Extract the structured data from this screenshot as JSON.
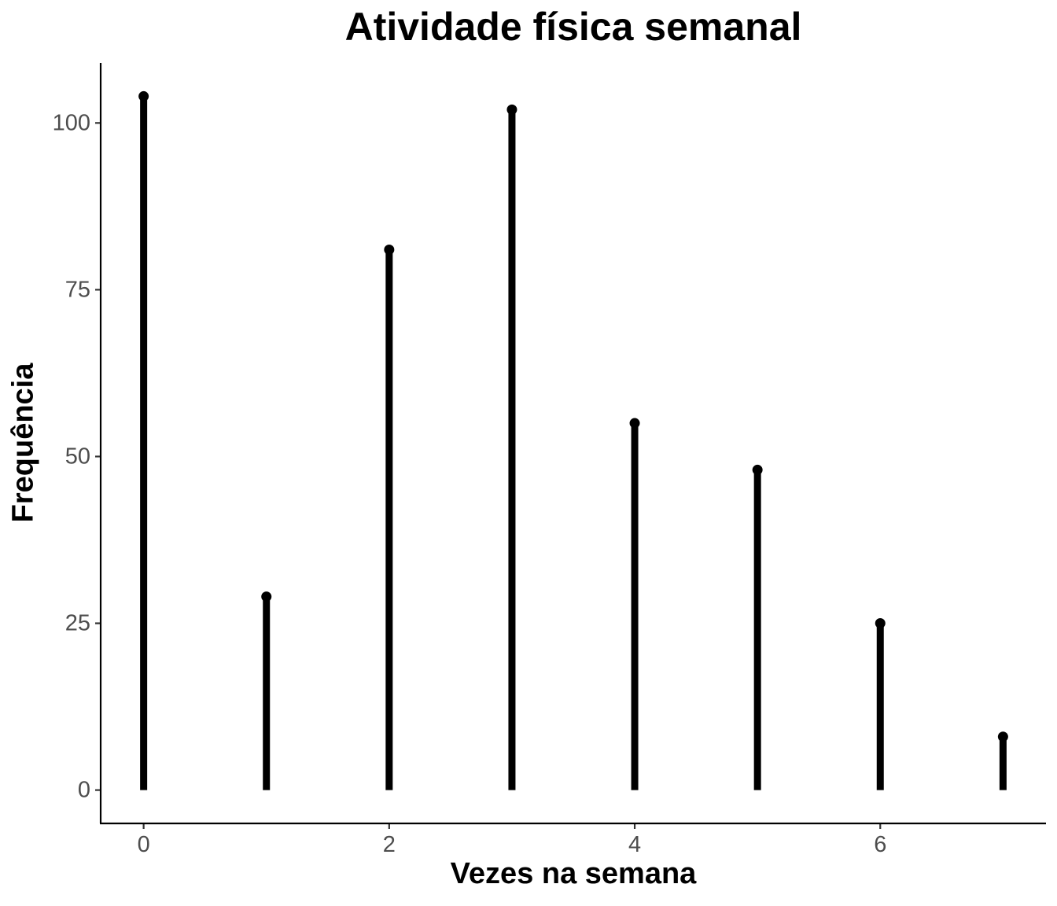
{
  "chart_data": {
    "type": "lollipop",
    "title": "Atividade física semanal",
    "xlabel": "Vezes na semana",
    "ylabel": "Frequência",
    "x": [
      0,
      1,
      2,
      3,
      4,
      5,
      6,
      7
    ],
    "values": [
      104,
      29,
      81,
      102,
      55,
      48,
      25,
      8
    ],
    "xlim": [
      -0.35,
      7.35
    ],
    "ylim": [
      -5,
      109
    ],
    "x_ticks": [
      0,
      2,
      4,
      6
    ],
    "y_ticks": [
      0,
      25,
      50,
      75,
      100
    ],
    "grid": false,
    "legend": "none",
    "color": "#000000"
  }
}
